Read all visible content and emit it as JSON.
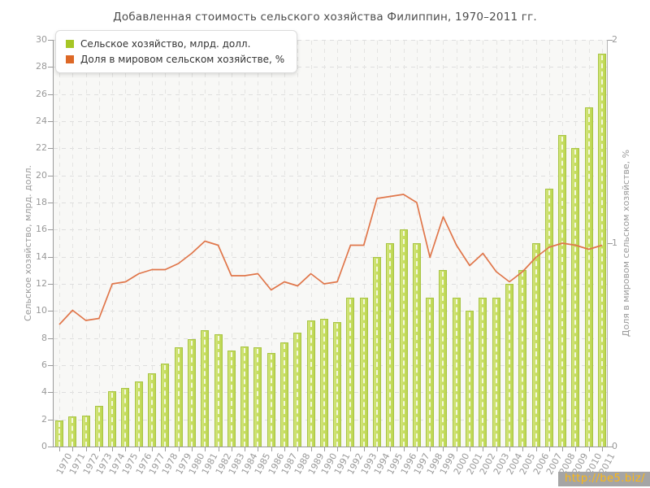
{
  "chart_data": {
    "type": "bar",
    "title": "Добавленная стоимость сельского хозяйства Филиппин, 1970–2011 гг.",
    "categories": [
      1970,
      1971,
      1972,
      1973,
      1974,
      1975,
      1976,
      1977,
      1978,
      1979,
      1980,
      1981,
      1982,
      1983,
      1984,
      1985,
      1986,
      1987,
      1988,
      1989,
      1990,
      1991,
      1992,
      1993,
      1994,
      1995,
      1996,
      1997,
      1998,
      1999,
      2000,
      2001,
      2002,
      2003,
      2004,
      2005,
      2006,
      2007,
      2008,
      2009,
      2010,
      2011
    ],
    "series": [
      {
        "name": "Сельское хозяйство, млрд. долл.",
        "type": "bar",
        "axis": "left",
        "color": "#bcd64f",
        "values": [
          1.9,
          2.2,
          2.3,
          3.0,
          4.1,
          4.3,
          4.8,
          5.4,
          6.1,
          7.3,
          7.9,
          8.6,
          8.3,
          7.1,
          7.4,
          7.3,
          6.9,
          7.7,
          8.4,
          9.3,
          9.4,
          9.2,
          11.0,
          11.0,
          14.0,
          15.0,
          16.0,
          15.0,
          11.0,
          13.0,
          11.0,
          10.0,
          11.0,
          11.0,
          12.0,
          13.0,
          15.0,
          19.0,
          23.0,
          22.0,
          25.0,
          29.0
        ]
      },
      {
        "name": "Доля в мировом сельском хозяйстве, %",
        "type": "line",
        "axis": "right",
        "color": "#e0764a",
        "values": [
          0.6,
          0.67,
          0.62,
          0.63,
          0.8,
          0.81,
          0.85,
          0.87,
          0.87,
          0.9,
          0.95,
          1.01,
          0.99,
          0.84,
          0.84,
          0.85,
          0.77,
          0.81,
          0.79,
          0.85,
          0.8,
          0.81,
          0.99,
          0.99,
          1.22,
          1.23,
          1.24,
          1.2,
          0.93,
          1.13,
          0.99,
          0.89,
          0.95,
          0.86,
          0.81,
          0.86,
          0.93,
          0.98,
          1.0,
          0.99,
          0.97,
          0.99
        ]
      }
    ],
    "left_axis": {
      "label": "Сельское хозяйство, млрд. долл.",
      "min": 0,
      "max": 30,
      "tick_step": 2
    },
    "right_axis": {
      "label": "Доля в мировом сельском хозяйстве, %",
      "min": 0,
      "max": 2,
      "tick_step": 1
    },
    "grid": true,
    "legend_position": "top-left"
  },
  "legend": {
    "items": [
      {
        "label": "Сельское хозяйство, млрд. долл.",
        "color": "#a6c626"
      },
      {
        "label": "Доля в мировом сельском хозяйстве, %",
        "color": "#dd6826"
      }
    ]
  },
  "watermark": {
    "text": "http://be5.biz/",
    "text_color": "#fdb813",
    "bg_color": "#a5a5a5"
  }
}
